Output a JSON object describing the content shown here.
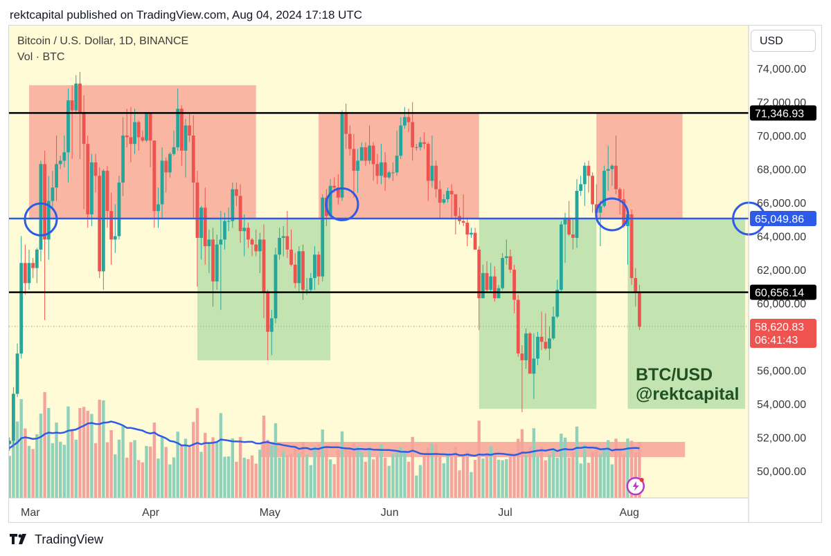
{
  "header": {
    "publisher_line": "rektcapital published on TradingView.com, Aug 04, 2024 17:18 UTC"
  },
  "chart_header": {
    "symbol": "Bitcoin / U.S. Dollar, 1D, BINANCE",
    "volume": "Vol · BTC",
    "currency_button": "USD"
  },
  "footer": {
    "brand": "TradingView"
  },
  "colors": {
    "background": "#fffbd7",
    "up": "#26a69a",
    "down": "#ef5350",
    "zone_red": "#f7a99a",
    "zone_green": "#b9dfa9",
    "blue": "#2d5be6",
    "black": "#000000"
  },
  "chart_data": {
    "type": "candlestick",
    "title": "Bitcoin / U.S. Dollar, 1D, BINANCE",
    "watermark": [
      "BTC/USD",
      "@rektcapital"
    ],
    "y_axis": {
      "ticks": [
        50000,
        52000,
        54000,
        56000,
        58000,
        60000,
        62000,
        64000,
        66000,
        68000,
        70000,
        72000,
        74000
      ],
      "tick_labels": [
        "50,000.00",
        "52,000.00",
        "54,000.00",
        "56,000.00",
        "58,000.00",
        "60,000.00",
        "62,000.00",
        "64,000.00",
        "66,000.00",
        "68,000.00",
        "70,000.00",
        "72,000.00",
        "74,000.00"
      ]
    },
    "x_axis": {
      "labels": [
        "Mar",
        "Apr",
        "May",
        "Jun",
        "Jul",
        "Aug"
      ],
      "label_dates": [
        "2024-03-01",
        "2024-04-01",
        "2024-05-01",
        "2024-06-01",
        "2024-07-01",
        "2024-08-01"
      ]
    },
    "horizontal_lines": [
      {
        "price": 71346.93,
        "label": "71,346.93",
        "color": "black"
      },
      {
        "price": 65049.86,
        "label": "65,049.86",
        "color": "blue"
      },
      {
        "price": 60656.14,
        "label": "60,656.14",
        "color": "black"
      }
    ],
    "last_price": {
      "price": 58620.83,
      "label": "58,620.83",
      "countdown": "06:41:43"
    },
    "zones": [
      {
        "kind": "resistance",
        "from": "2024-03-01",
        "to": "2024-04-28",
        "low": 65049.86,
        "high": 73000
      },
      {
        "kind": "support",
        "from": "2024-04-13",
        "to": "2024-05-17",
        "low": 56600,
        "high": 65049.86
      },
      {
        "kind": "resistance",
        "from": "2024-05-14",
        "to": "2024-06-24",
        "low": 65049.86,
        "high": 71346.93
      },
      {
        "kind": "support",
        "from": "2024-06-24",
        "to": "2024-07-24",
        "low": 53700,
        "high": 65049.86
      },
      {
        "kind": "resistance",
        "from": "2024-07-24",
        "to": "2024-08-15",
        "low": 65049.86,
        "high": 71346.93
      },
      {
        "kind": "support",
        "from": "2024-08-01",
        "to": "2024-08-31",
        "low": 53700,
        "high": 65049.86
      }
    ],
    "volume_band": {
      "from": "2024-05-01",
      "to": "2024-08-16"
    },
    "circles": [
      {
        "date": "2024-03-04",
        "price": 65000
      },
      {
        "date": "2024-05-20",
        "price": 65900
      },
      {
        "date": "2024-07-28",
        "price": 65300
      },
      {
        "date": "2024-09-01",
        "price": 65049.86
      }
    ],
    "candles_ohlc": [
      [
        "2024-02-19",
        51800,
        52200,
        51200,
        51700
      ],
      [
        "2024-02-20",
        51700,
        52900,
        50700,
        52300
      ],
      [
        "2024-02-21",
        52300,
        52400,
        50900,
        51800
      ],
      [
        "2024-02-22",
        51800,
        52000,
        50800,
        51300
      ],
      [
        "2024-02-23",
        51300,
        51600,
        50500,
        50800
      ],
      [
        "2024-02-24",
        50800,
        51800,
        50700,
        51600
      ],
      [
        "2024-02-25",
        51600,
        52000,
        51200,
        51800
      ],
      [
        "2024-02-26",
        51800,
        55000,
        51400,
        54600
      ],
      [
        "2024-02-27",
        54600,
        57600,
        54400,
        57000
      ],
      [
        "2024-02-28",
        57000,
        64000,
        56700,
        62400
      ],
      [
        "2024-02-29",
        62400,
        63500,
        60500,
        61200
      ],
      [
        "2024-03-01",
        61200,
        63200,
        60800,
        62400
      ],
      [
        "2024-03-02",
        62400,
        62700,
        61500,
        62100
      ],
      [
        "2024-03-03",
        62100,
        63300,
        61200,
        63200
      ],
      [
        "2024-03-04",
        63200,
        68500,
        62500,
        68300
      ],
      [
        "2024-03-05",
        68300,
        69100,
        59000,
        63800
      ],
      [
        "2024-03-06",
        63800,
        67600,
        62600,
        66100
      ],
      [
        "2024-03-07",
        66100,
        67900,
        65600,
        66900
      ],
      [
        "2024-03-08",
        66900,
        70000,
        66100,
        68300
      ],
      [
        "2024-03-09",
        68300,
        68800,
        68000,
        68500
      ],
      [
        "2024-03-10",
        68500,
        70000,
        68100,
        69000
      ],
      [
        "2024-03-11",
        69000,
        72800,
        67200,
        72100
      ],
      [
        "2024-03-12",
        72100,
        73000,
        68600,
        71500
      ],
      [
        "2024-03-13",
        71500,
        73600,
        71300,
        73100
      ],
      [
        "2024-03-14",
        73100,
        73800,
        68600,
        71400
      ],
      [
        "2024-03-15",
        71400,
        72400,
        65600,
        69500
      ],
      [
        "2024-03-16",
        69500,
        70000,
        64500,
        65300
      ],
      [
        "2024-03-17",
        65300,
        68900,
        64600,
        68400
      ],
      [
        "2024-03-18",
        68400,
        68900,
        66600,
        67600
      ],
      [
        "2024-03-19",
        67600,
        68100,
        61500,
        61900
      ],
      [
        "2024-03-20",
        61900,
        68000,
        60800,
        67900
      ],
      [
        "2024-03-21",
        67900,
        68200,
        64500,
        65500
      ],
      [
        "2024-03-22",
        65500,
        66600,
        62300,
        63800
      ],
      [
        "2024-03-23",
        63800,
        65900,
        63000,
        64000
      ],
      [
        "2024-03-24",
        64000,
        67600,
        63800,
        67200
      ],
      [
        "2024-03-25",
        67200,
        71100,
        66400,
        70000
      ],
      [
        "2024-03-26",
        70000,
        71600,
        69300,
        69900
      ],
      [
        "2024-03-27",
        69900,
        71700,
        68400,
        69500
      ],
      [
        "2024-03-28",
        69500,
        71600,
        68900,
        70800
      ],
      [
        "2024-03-29",
        70800,
        70900,
        69100,
        69900
      ],
      [
        "2024-03-30",
        69900,
        70300,
        69600,
        69700
      ],
      [
        "2024-03-31",
        69700,
        71400,
        69600,
        71300
      ],
      [
        "2024-04-01",
        71300,
        71300,
        68100,
        69700
      ],
      [
        "2024-04-02",
        69700,
        69700,
        64500,
        65500
      ],
      [
        "2024-04-03",
        65500,
        66900,
        64500,
        65900
      ],
      [
        "2024-04-04",
        65900,
        69300,
        65100,
        68500
      ],
      [
        "2024-04-05",
        68500,
        68700,
        66600,
        67800
      ],
      [
        "2024-04-06",
        67800,
        69000,
        67500,
        68900
      ],
      [
        "2024-04-07",
        68900,
        70300,
        68800,
        69300
      ],
      [
        "2024-04-08",
        69300,
        72800,
        69100,
        71600
      ],
      [
        "2024-04-09",
        71600,
        71800,
        68200,
        69100
      ],
      [
        "2024-04-10",
        69100,
        71000,
        67500,
        70600
      ],
      [
        "2024-04-11",
        70600,
        71300,
        69600,
        70000
      ],
      [
        "2024-04-12",
        70000,
        71200,
        65100,
        67200
      ],
      [
        "2024-04-13",
        67200,
        67900,
        61000,
        63900
      ],
      [
        "2024-04-14",
        63900,
        65800,
        62600,
        65700
      ],
      [
        "2024-04-15",
        65700,
        66900,
        62300,
        63400
      ],
      [
        "2024-04-16",
        63400,
        64400,
        61800,
        63800
      ],
      [
        "2024-04-17",
        63800,
        64500,
        59800,
        61300
      ],
      [
        "2024-04-18",
        61300,
        64100,
        60800,
        63500
      ],
      [
        "2024-04-19",
        63500,
        65500,
        59600,
        63800
      ],
      [
        "2024-04-20",
        63800,
        65400,
        63200,
        64900
      ],
      [
        "2024-04-21",
        64900,
        65700,
        64300,
        64900
      ],
      [
        "2024-04-22",
        64900,
        67200,
        64500,
        66800
      ],
      [
        "2024-04-23",
        66800,
        67200,
        65800,
        66400
      ],
      [
        "2024-04-24",
        66400,
        67100,
        63600,
        64300
      ],
      [
        "2024-04-25",
        64300,
        65300,
        62800,
        64500
      ],
      [
        "2024-04-26",
        64500,
        64800,
        63300,
        63800
      ],
      [
        "2024-04-27",
        63800,
        63900,
        62800,
        63500
      ],
      [
        "2024-04-28",
        63500,
        64400,
        62800,
        63100
      ],
      [
        "2024-04-29",
        63100,
        64200,
        61800,
        63800
      ],
      [
        "2024-04-30",
        63800,
        64700,
        59100,
        60600
      ],
      [
        "2024-05-01",
        60600,
        60800,
        56600,
        58300
      ],
      [
        "2024-05-02",
        58300,
        59600,
        56900,
        59100
      ],
      [
        "2024-05-03",
        59100,
        63300,
        58800,
        62900
      ],
      [
        "2024-05-04",
        62900,
        64500,
        62600,
        63900
      ],
      [
        "2024-05-05",
        63900,
        64600,
        62800,
        64000
      ],
      [
        "2024-05-06",
        64000,
        65500,
        62700,
        63200
      ],
      [
        "2024-05-07",
        63200,
        64400,
        62200,
        62300
      ],
      [
        "2024-05-08",
        62300,
        63000,
        60900,
        61200
      ],
      [
        "2024-05-09",
        61200,
        63400,
        60600,
        63100
      ],
      [
        "2024-05-10",
        63100,
        63500,
        60200,
        60800
      ],
      [
        "2024-05-11",
        60800,
        61500,
        60500,
        60800
      ],
      [
        "2024-05-12",
        60800,
        61800,
        60600,
        61500
      ],
      [
        "2024-05-13",
        61500,
        63400,
        60800,
        62900
      ],
      [
        "2024-05-14",
        62900,
        63100,
        61100,
        61600
      ],
      [
        "2024-05-15",
        61600,
        66500,
        61300,
        66300
      ],
      [
        "2024-05-16",
        66300,
        66800,
        64600,
        65200
      ],
      [
        "2024-05-17",
        65200,
        67400,
        65100,
        67000
      ],
      [
        "2024-05-18",
        67000,
        67500,
        66600,
        66900
      ],
      [
        "2024-05-19",
        66900,
        67700,
        65900,
        66300
      ],
      [
        "2024-05-20",
        66300,
        71500,
        66100,
        71400
      ],
      [
        "2024-05-21",
        71400,
        71900,
        69200,
        70100
      ],
      [
        "2024-05-22",
        70100,
        70600,
        68800,
        69200
      ],
      [
        "2024-05-23",
        69200,
        70100,
        66300,
        67900
      ],
      [
        "2024-05-24",
        67900,
        69200,
        66600,
        68500
      ],
      [
        "2024-05-25",
        68500,
        69600,
        68500,
        69300
      ],
      [
        "2024-05-26",
        69300,
        69600,
        68200,
        68500
      ],
      [
        "2024-05-27",
        68500,
        70600,
        68300,
        69400
      ],
      [
        "2024-05-28",
        69400,
        69600,
        67300,
        68300
      ],
      [
        "2024-05-29",
        68300,
        68900,
        67100,
        67600
      ],
      [
        "2024-05-30",
        67600,
        69500,
        67100,
        68400
      ],
      [
        "2024-05-31",
        68400,
        69000,
        66700,
        67500
      ],
      [
        "2024-06-01",
        67500,
        67900,
        67400,
        67800
      ],
      [
        "2024-06-02",
        67800,
        68400,
        67300,
        67800
      ],
      [
        "2024-06-03",
        67800,
        70300,
        67600,
        68800
      ],
      [
        "2024-06-04",
        68800,
        71100,
        68600,
        70600
      ],
      [
        "2024-06-05",
        70600,
        71700,
        70400,
        71100
      ],
      [
        "2024-06-06",
        71100,
        71600,
        70200,
        70800
      ],
      [
        "2024-06-07",
        70800,
        72000,
        68500,
        69300
      ],
      [
        "2024-06-08",
        69300,
        69500,
        69100,
        69300
      ],
      [
        "2024-06-09",
        69300,
        69900,
        69100,
        69600
      ],
      [
        "2024-06-10",
        69600,
        70200,
        69200,
        69500
      ],
      [
        "2024-06-11",
        69500,
        69600,
        66100,
        67300
      ],
      [
        "2024-06-12",
        67300,
        70000,
        66900,
        68200
      ],
      [
        "2024-06-13",
        68200,
        68500,
        66300,
        66800
      ],
      [
        "2024-06-14",
        66800,
        67300,
        65100,
        66000
      ],
      [
        "2024-06-15",
        66000,
        66500,
        65900,
        66200
      ],
      [
        "2024-06-16",
        66200,
        66900,
        66000,
        66700
      ],
      [
        "2024-06-17",
        66700,
        67100,
        65100,
        66500
      ],
      [
        "2024-06-18",
        66500,
        66500,
        64100,
        65200
      ],
      [
        "2024-06-19",
        65200,
        65700,
        64700,
        64900
      ],
      [
        "2024-06-20",
        64900,
        66500,
        64600,
        64800
      ],
      [
        "2024-06-21",
        64800,
        65000,
        63400,
        64100
      ],
      [
        "2024-06-22",
        64100,
        64500,
        63900,
        64200
      ],
      [
        "2024-06-23",
        64200,
        64500,
        63300,
        63200
      ],
      [
        "2024-06-24",
        63200,
        63400,
        58400,
        60300
      ],
      [
        "2024-06-25",
        60300,
        62300,
        60300,
        61800
      ],
      [
        "2024-06-26",
        61800,
        62500,
        60700,
        60800
      ],
      [
        "2024-06-27",
        60800,
        62400,
        60600,
        61600
      ],
      [
        "2024-06-28",
        61600,
        62200,
        60100,
        60300
      ],
      [
        "2024-06-29",
        60300,
        61100,
        60300,
        60900
      ],
      [
        "2024-06-30",
        60900,
        63000,
        60800,
        62700
      ],
      [
        "2024-07-01",
        62700,
        63800,
        62300,
        62800
      ],
      [
        "2024-07-02",
        62800,
        63200,
        61800,
        62000
      ],
      [
        "2024-07-03",
        62000,
        62300,
        59400,
        60200
      ],
      [
        "2024-07-04",
        60200,
        60500,
        56800,
        57000
      ],
      [
        "2024-07-05",
        57000,
        57500,
        53500,
        56600
      ],
      [
        "2024-07-06",
        56600,
        58500,
        56100,
        58200
      ],
      [
        "2024-07-07",
        58200,
        58300,
        55800,
        55800
      ],
      [
        "2024-07-08",
        55800,
        58200,
        54300,
        56700
      ],
      [
        "2024-07-09",
        56700,
        58300,
        56300,
        58000
      ],
      [
        "2024-07-10",
        58000,
        59500,
        57200,
        57700
      ],
      [
        "2024-07-11",
        57700,
        59400,
        57200,
        57300
      ],
      [
        "2024-07-12",
        57300,
        58600,
        56600,
        57900
      ],
      [
        "2024-07-13",
        57900,
        59800,
        57800,
        59200
      ],
      [
        "2024-07-14",
        59200,
        61400,
        59100,
        60800
      ],
      [
        "2024-07-15",
        60800,
        64900,
        60600,
        64700
      ],
      [
        "2024-07-16",
        64700,
        65400,
        62400,
        65100
      ],
      [
        "2024-07-17",
        65100,
        66100,
        64000,
        64100
      ],
      [
        "2024-07-18",
        64100,
        65100,
        63200,
        63900
      ],
      [
        "2024-07-19",
        63900,
        67400,
        63300,
        66700
      ],
      [
        "2024-07-20",
        66700,
        67600,
        66400,
        67100
      ],
      [
        "2024-07-21",
        67100,
        68400,
        65800,
        68200
      ],
      [
        "2024-07-22",
        68200,
        68500,
        66600,
        67600
      ],
      [
        "2024-07-23",
        67600,
        67800,
        65400,
        65900
      ],
      [
        "2024-07-24",
        65900,
        67100,
        65100,
        65400
      ],
      [
        "2024-07-25",
        65400,
        66100,
        63400,
        65800
      ],
      [
        "2024-07-26",
        65800,
        68200,
        65700,
        67900
      ],
      [
        "2024-07-27",
        67900,
        69400,
        66700,
        68000
      ],
      [
        "2024-07-28",
        68000,
        68300,
        67000,
        68200
      ],
      [
        "2024-07-29",
        68200,
        70000,
        66500,
        66800
      ],
      [
        "2024-07-30",
        66800,
        66900,
        65300,
        66200
      ],
      [
        "2024-07-31",
        66200,
        66800,
        64500,
        64600
      ],
      [
        "2024-08-01",
        64600,
        65600,
        62300,
        65300
      ],
      [
        "2024-08-02",
        65300,
        65600,
        61100,
        61500
      ],
      [
        "2024-08-03",
        61500,
        62100,
        59800,
        60700
      ],
      [
        "2024-08-04",
        60700,
        61100,
        58400,
        58600
      ]
    ],
    "volume_ma_shape": "smooth ~ 0.15-0.35 of pane height, peaks mid-March, flattens from May onward"
  }
}
